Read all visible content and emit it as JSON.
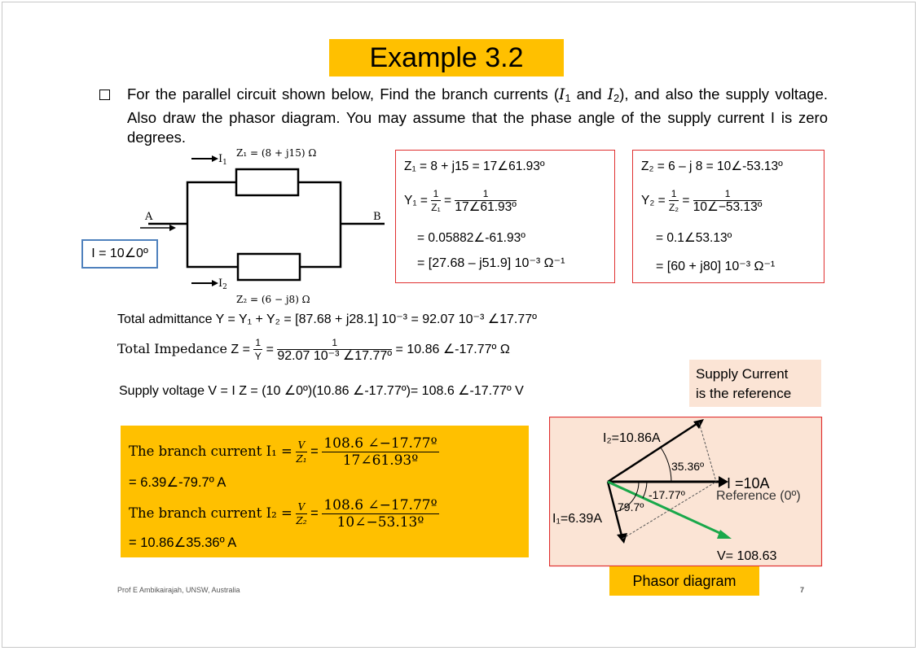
{
  "title": "Example 3.2",
  "problem": {
    "part1": "For the parallel circuit shown below, Find the  branch currents (",
    "i1": "I",
    "i1_sub": "1",
    "and": " and ",
    "i2": "I",
    "i2_sub": "2",
    "part2": "), and also the supply voltage. Also draw the phasor diagram. You may assume that the phase angle of the supply current I is zero degrees."
  },
  "circuit": {
    "i1_label": "I",
    "i1_sub": "1",
    "z1_label": "Z₁ = (8 + j15) Ω",
    "i2_label": "I",
    "i2_sub": "2",
    "z2_label": "Z₂ = (6 − j8) Ω",
    "node_a": "A",
    "node_b": "B"
  },
  "supply_current": "I = 10∠0º",
  "box1": {
    "line1": "Z₁ = 8 + j15 = 17∠61.93º",
    "y_label": "Y₁ =",
    "frac1_num": "1",
    "frac1_den": "Z₁",
    "eq_sign": "=",
    "frac2_num": "1",
    "frac2_den": "17∠61.93º",
    "line3": "= 0.05882∠-61.93º",
    "line4": "= [27.68 – j51.9] 10⁻³ Ω⁻¹"
  },
  "box2": {
    "line1": "Z₂ = 6 – j 8 = 10∠-53.13º",
    "y_label": "Y₂ =",
    "frac1_num": "1",
    "frac1_den": "Z₂",
    "eq_sign": "=",
    "frac2_num": "1",
    "frac2_den": "10∠−53.13º",
    "line3": "= 0.1∠53.13º",
    "line4": "= [60 + j80] 10⁻³ Ω⁻¹"
  },
  "total_admittance": "Total admittance Y = Y₁ + Y₂  = [87.68 + j28.1] 10⁻³ = 92.07 10⁻³ ∠17.77º",
  "total_impedance": {
    "prefix": "Total Impedance",
    "z_eq": "Z =",
    "frac1_num": "1",
    "frac1_den": "Y",
    "eq_sign": "=",
    "frac2_num": "1",
    "frac2_den": "92.07 10⁻³ ∠17.77º",
    "result": "= 10.86 ∠-17.77º Ω"
  },
  "supply_voltage": "Supply voltage  V = I Z = (10 ∠0º)(10.86 ∠-17.77º)= 108.6 ∠-17.77º V",
  "reference_note": {
    "line1": "Supply Current",
    "line2": "is the reference"
  },
  "branch_box": {
    "row1_label": "The branch current I₁ =",
    "row1_frac1_num": "V",
    "row1_frac1_den": "Z₁",
    "row1_eq": "=",
    "row1_frac2_num": "108.6 ∠−17.77º",
    "row1_frac2_den": "17∠61.93º",
    "row1_result": "= 6.39∠-79.7º A",
    "row2_label": "The branch current I₂ =",
    "row2_frac1_num": "V",
    "row2_frac1_den": "Z₂",
    "row2_eq": "=",
    "row2_frac2_num": "108.6 ∠−17.77º",
    "row2_frac2_den": "10∠−53.13º",
    "row2_result": "= 10.86∠35.36º A"
  },
  "phasor": {
    "i2_label": "I₂=10.86A",
    "angle1": "35.36º",
    "i_label": "I =10A",
    "reference": "Reference (0º)",
    "angle2": "-17.77º",
    "angle3": "79.7º",
    "i1_label": "I₁=6.39A",
    "v_label": "V= 108.63",
    "caption": "Phasor diagram"
  },
  "footer": {
    "author": "Prof  E  Ambikairajah, UNSW, Australia",
    "page": "7"
  },
  "colors": {
    "title_bg": "#ffc000",
    "box_border": "#e03030",
    "supply_border": "#4f81bd",
    "note_bg": "#fbe4d5",
    "voltage_arrow": "#1aa84a"
  }
}
